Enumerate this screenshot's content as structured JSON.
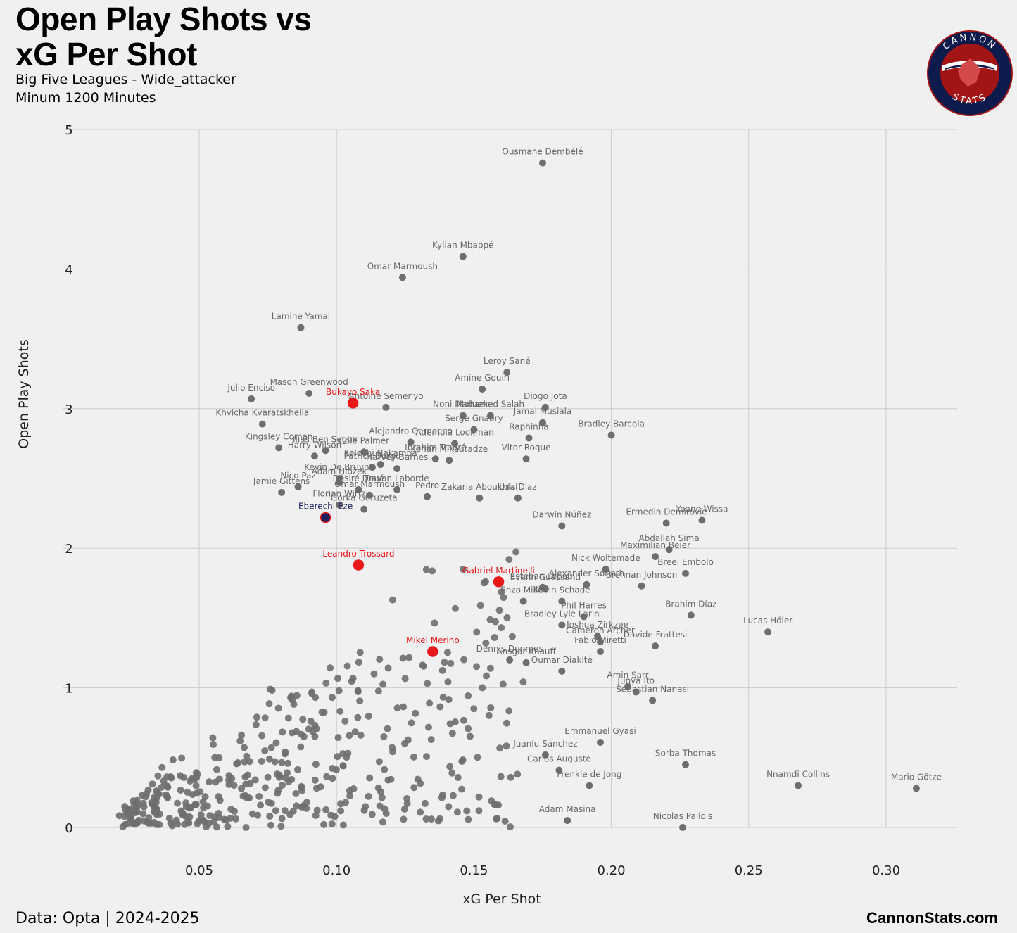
{
  "header": {
    "title_line1": "Open Play Shots vs",
    "title_line2": "xG Per Shot",
    "subtitle_line1": "Big Five Leagues - Wide_attacker",
    "subtitle_line2": "Minum 1200 Minutes"
  },
  "footer": {
    "source": "Data: Opta | 2024-2025",
    "brand": "CannonStats.com"
  },
  "logo": {
    "text_top": "CANNON",
    "text_bottom": "STATS",
    "colors": {
      "ring": "#0d1b4c",
      "inner": "#a31515",
      "band": "#ffffff"
    }
  },
  "chart_data": {
    "type": "scatter",
    "xlabel": "xG Per Shot",
    "ylabel": "Open Play Shots",
    "xlim": [
      0.0,
      0.3
    ],
    "ylim": [
      0,
      5
    ],
    "xticks": [
      "0.05",
      "0.10",
      "0.15",
      "0.20",
      "0.25",
      "0.30"
    ],
    "yticks": [
      "0",
      "1",
      "2",
      "3",
      "4",
      "5"
    ],
    "grid": true,
    "colors": {
      "point": "#6e6e6e",
      "highlight": "#e8191b",
      "highlight_alt": "#1b1f5e",
      "grid": "#cccccc"
    },
    "highlighted": [
      {
        "name": "Bukayo Saka",
        "x": 0.106,
        "y": 3.04,
        "color": "#e8191b"
      },
      {
        "name": "Leandro Trossard",
        "x": 0.108,
        "y": 1.88,
        "color": "#e8191b"
      },
      {
        "name": "Gabriel Martinelli",
        "x": 0.159,
        "y": 1.76,
        "color": "#e8191b"
      },
      {
        "name": "Mikel Merino",
        "x": 0.135,
        "y": 1.26,
        "color": "#e8191b"
      },
      {
        "name": "Eberechi Eze",
        "x": 0.096,
        "y": 2.22,
        "color": "#1b1f5e"
      }
    ],
    "labeled_points": [
      {
        "name": "Ousmane Dembélé",
        "x": 0.175,
        "y": 4.76
      },
      {
        "name": "Kylian Mbappé",
        "x": 0.146,
        "y": 4.09
      },
      {
        "name": "Omar Marmoush",
        "x": 0.124,
        "y": 3.94
      },
      {
        "name": "Lamine Yamal",
        "x": 0.087,
        "y": 3.58
      },
      {
        "name": "Leroy Sané",
        "x": 0.162,
        "y": 3.26
      },
      {
        "name": "Amine Gouiri",
        "x": 0.153,
        "y": 3.14
      },
      {
        "name": "Mason Greenwood",
        "x": 0.09,
        "y": 3.11
      },
      {
        "name": "Julio Enciso",
        "x": 0.069,
        "y": 3.07
      },
      {
        "name": "Antoine Semenyo",
        "x": 0.118,
        "y": 3.01
      },
      {
        "name": "Diogo Jota",
        "x": 0.176,
        "y": 3.01
      },
      {
        "name": "Noni Madueke",
        "x": 0.146,
        "y": 2.95
      },
      {
        "name": "Mohamed Salah",
        "x": 0.156,
        "y": 2.95
      },
      {
        "name": "Jamal Musiala",
        "x": 0.175,
        "y": 2.9
      },
      {
        "name": "Khvicha Kvaratskhelia",
        "x": 0.073,
        "y": 2.89
      },
      {
        "name": "Serge Gnabry",
        "x": 0.15,
        "y": 2.85
      },
      {
        "name": "Bradley Barcola",
        "x": 0.2,
        "y": 2.81
      },
      {
        "name": "Raphinha",
        "x": 0.17,
        "y": 2.79
      },
      {
        "name": "Alejandro Garnacho",
        "x": 0.127,
        "y": 2.76
      },
      {
        "name": "Ademola Lookman",
        "x": 0.143,
        "y": 2.75
      },
      {
        "name": "Kingsley Coman",
        "x": 0.079,
        "y": 2.72
      },
      {
        "name": "Ilias Ben Seghir",
        "x": 0.096,
        "y": 2.7
      },
      {
        "name": "Cole Palmer",
        "x": 0.11,
        "y": 2.69
      },
      {
        "name": "Harry Wilson",
        "x": 0.092,
        "y": 2.66
      },
      {
        "name": "Ibrahim Traoré",
        "x": 0.136,
        "y": 2.64
      },
      {
        "name": "Vitor Roque",
        "x": 0.169,
        "y": 2.64
      },
      {
        "name": "Kenan Mikautadze",
        "x": 0.141,
        "y": 2.63
      },
      {
        "name": "Kelechi Nakamba",
        "x": 0.116,
        "y": 2.6
      },
      {
        "name": "Patrick Dorgu",
        "x": 0.113,
        "y": 2.58
      },
      {
        "name": "Harvey Barnes",
        "x": 0.122,
        "y": 2.57
      },
      {
        "name": "Kevin De Bruyne",
        "x": 0.101,
        "y": 2.5
      },
      {
        "name": "Adam Hložek",
        "x": 0.101,
        "y": 2.47
      },
      {
        "name": "Nico Paz",
        "x": 0.086,
        "y": 2.44
      },
      {
        "name": "Dayan Laborde",
        "x": 0.122,
        "y": 2.42
      },
      {
        "name": "Jamie Gittens",
        "x": 0.08,
        "y": 2.4
      },
      {
        "name": "Désiré Doué",
        "x": 0.108,
        "y": 2.42
      },
      {
        "name": "Pedro",
        "x": 0.133,
        "y": 2.37
      },
      {
        "name": "Zakaria Aboukhlal",
        "x": 0.152,
        "y": 2.36
      },
      {
        "name": "Luis Díaz",
        "x": 0.166,
        "y": 2.36
      },
      {
        "name": "Omar Marmoush",
        "x": 0.112,
        "y": 2.38
      },
      {
        "name": "Florian Wirtz",
        "x": 0.101,
        "y": 2.31
      },
      {
        "name": "Gorka Guruzeta",
        "x": 0.11,
        "y": 2.28
      },
      {
        "name": "Ermedin Demirović",
        "x": 0.22,
        "y": 2.18
      },
      {
        "name": "Yoane Wissa",
        "x": 0.233,
        "y": 2.2
      },
      {
        "name": "Darwin Núñez",
        "x": 0.182,
        "y": 2.16
      },
      {
        "name": "Abdallah Sima",
        "x": 0.221,
        "y": 1.99
      },
      {
        "name": "Maximilian Beier",
        "x": 0.216,
        "y": 1.94
      },
      {
        "name": "Nick Woltemade",
        "x": 0.198,
        "y": 1.85
      },
      {
        "name": "Breel Embolo",
        "x": 0.227,
        "y": 1.82
      },
      {
        "name": "Brennan Johnson",
        "x": 0.211,
        "y": 1.73
      },
      {
        "name": "Esteban Lepaul",
        "x": 0.175,
        "y": 1.72
      },
      {
        "name": "Alexander Sørloth",
        "x": 0.191,
        "y": 1.74
      },
      {
        "name": "Evann Guessand",
        "x": 0.176,
        "y": 1.71
      },
      {
        "name": "Enzo Millot",
        "x": 0.168,
        "y": 1.62
      },
      {
        "name": "Kevin Schade",
        "x": 0.182,
        "y": 1.62
      },
      {
        "name": "Phil Harres",
        "x": 0.19,
        "y": 1.51
      },
      {
        "name": "Brahim Díaz",
        "x": 0.229,
        "y": 1.52
      },
      {
        "name": "Lucas Höler",
        "x": 0.257,
        "y": 1.4
      },
      {
        "name": "Bradley Lyle Larin",
        "x": 0.182,
        "y": 1.45
      },
      {
        "name": "Joshua Zirkzee",
        "x": 0.195,
        "y": 1.37
      },
      {
        "name": "Davide Frattesi",
        "x": 0.216,
        "y": 1.3
      },
      {
        "name": "Cameron Archer",
        "x": 0.196,
        "y": 1.33
      },
      {
        "name": "Fabio Miretti",
        "x": 0.196,
        "y": 1.26
      },
      {
        "name": "Dennis Dunmes",
        "x": 0.163,
        "y": 1.2
      },
      {
        "name": "Ansgar Knauff",
        "x": 0.169,
        "y": 1.18
      },
      {
        "name": "Oumar Diakité",
        "x": 0.182,
        "y": 1.12
      },
      {
        "name": "Amin Sarr",
        "x": 0.206,
        "y": 1.01
      },
      {
        "name": "Junya Ito",
        "x": 0.209,
        "y": 0.97
      },
      {
        "name": "Sebastian Nanasi",
        "x": 0.215,
        "y": 0.91
      },
      {
        "name": "Emmanuel Gyasi",
        "x": 0.196,
        "y": 0.61
      },
      {
        "name": "Juanlu Sánchez",
        "x": 0.176,
        "y": 0.52
      },
      {
        "name": "Sorba Thomas",
        "x": 0.227,
        "y": 0.45
      },
      {
        "name": "Carlos Augusto",
        "x": 0.181,
        "y": 0.41
      },
      {
        "name": "Frenkie de Jong",
        "x": 0.192,
        "y": 0.3
      },
      {
        "name": "Nnamdi Collins",
        "x": 0.268,
        "y": 0.3
      },
      {
        "name": "Mario Götze",
        "x": 0.311,
        "y": 0.28
      },
      {
        "name": "Adam Masina",
        "x": 0.184,
        "y": 0.05
      },
      {
        "name": "Nicolas Pallois",
        "x": 0.226,
        "y": 0.0
      }
    ]
  }
}
